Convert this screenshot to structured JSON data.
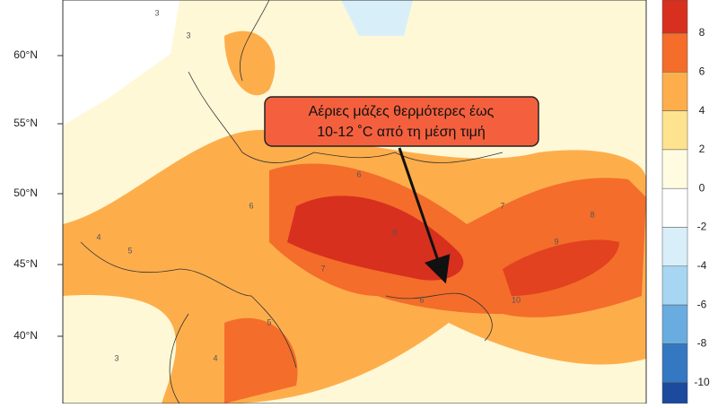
{
  "map": {
    "latitude_labels": [
      "60°N",
      "55°N",
      "50°N",
      "45°N",
      "40°N"
    ],
    "colorbar": {
      "ticks": [
        8,
        6,
        4,
        2,
        0,
        -2,
        -4,
        -6,
        -8,
        -10
      ],
      "colors": [
        "#d7301f",
        "#f46d2b",
        "#fdae4b",
        "#fee38f",
        "#fffbe0",
        "#ffffff",
        "#d8effa",
        "#a6d6f2",
        "#69acdf",
        "#3478c2",
        "#1c4a9c"
      ]
    },
    "contour_labels": [
      3,
      3,
      4,
      5,
      6,
      7,
      8,
      9,
      10,
      6,
      5,
      4,
      3,
      7,
      8,
      6
    ],
    "annotation": {
      "lines": [
        "Αέριες μάζες θερμότερες έως",
        "10-12 ˚C από τη μέση τιμή"
      ]
    }
  }
}
